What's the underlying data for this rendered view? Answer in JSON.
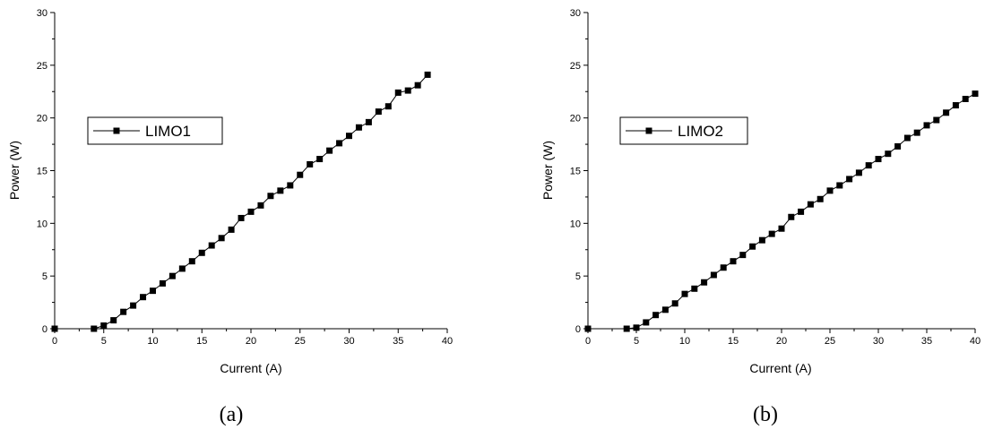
{
  "chart_data": [
    {
      "type": "line",
      "caption": "(a)",
      "xlabel": "Current (A)",
      "ylabel": "Power (W)",
      "xlim": [
        0,
        40
      ],
      "ylim": [
        0,
        30
      ],
      "xticks": [
        "0",
        "5",
        "10",
        "15",
        "20",
        "25",
        "30",
        "35",
        "40"
      ],
      "yticks": [
        "0",
        "5",
        "10",
        "15",
        "20",
        "25",
        "30"
      ],
      "legend_position": "upper-left",
      "marker": "square",
      "series": [
        {
          "name": "LIMO1",
          "x": [
            0,
            4,
            5,
            6,
            7,
            8,
            9,
            10,
            11,
            12,
            13,
            14,
            15,
            16,
            17,
            18,
            19,
            20,
            21,
            22,
            23,
            24,
            25,
            26,
            27,
            28,
            29,
            30,
            31,
            32,
            33,
            34,
            35,
            36,
            37,
            38
          ],
          "y": [
            0,
            0,
            0.3,
            0.8,
            1.6,
            2.2,
            3.0,
            3.6,
            4.3,
            5.0,
            5.7,
            6.4,
            7.2,
            7.9,
            8.6,
            9.4,
            10.5,
            11.1,
            11.7,
            12.6,
            13.1,
            13.6,
            14.6,
            15.6,
            16.1,
            16.9,
            17.6,
            18.3,
            19.1,
            19.6,
            20.6,
            21.1,
            22.4,
            22.6,
            23.1,
            24.1
          ]
        }
      ]
    },
    {
      "type": "line",
      "caption": "(b)",
      "xlabel": "Current (A)",
      "ylabel": "Power (W)",
      "xlim": [
        0,
        40
      ],
      "ylim": [
        0,
        30
      ],
      "xticks": [
        "0",
        "5",
        "10",
        "15",
        "20",
        "25",
        "30",
        "35",
        "40"
      ],
      "yticks": [
        "0",
        "5",
        "10",
        "15",
        "20",
        "25",
        "30"
      ],
      "legend_position": "upper-left",
      "marker": "square",
      "series": [
        {
          "name": "LIMO2",
          "x": [
            0,
            4,
            5,
            6,
            7,
            8,
            9,
            10,
            11,
            12,
            13,
            14,
            15,
            16,
            17,
            18,
            19,
            20,
            21,
            22,
            23,
            24,
            25,
            26,
            27,
            28,
            29,
            30,
            31,
            32,
            33,
            34,
            35,
            36,
            37,
            38,
            39,
            40
          ],
          "y": [
            0,
            0,
            0.1,
            0.6,
            1.3,
            1.8,
            2.4,
            3.3,
            3.8,
            4.4,
            5.1,
            5.8,
            6.4,
            7.0,
            7.8,
            8.4,
            9.0,
            9.5,
            10.6,
            11.1,
            11.8,
            12.3,
            13.1,
            13.6,
            14.2,
            14.8,
            15.5,
            16.1,
            16.6,
            17.3,
            18.1,
            18.6,
            19.3,
            19.8,
            20.5,
            21.2,
            21.8,
            22.3
          ]
        }
      ]
    }
  ]
}
